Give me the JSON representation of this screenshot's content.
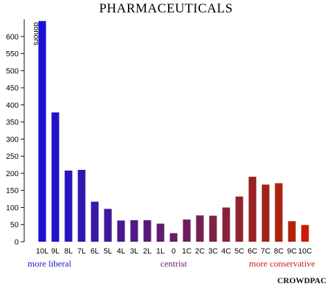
{
  "chart_data": {
    "type": "bar",
    "title": "PHARMACEUTICALS",
    "xlabel": "",
    "ylabel": "donors",
    "ylim": [
      0,
      650
    ],
    "yticks": [
      0,
      50,
      100,
      150,
      200,
      250,
      300,
      350,
      400,
      450,
      500,
      550,
      600
    ],
    "categories": [
      "10L",
      "9L",
      "8L",
      "7L",
      "6L",
      "5L",
      "4L",
      "3L",
      "2L",
      "1L",
      "0",
      "1C",
      "2C",
      "3C",
      "4C",
      "5C",
      "6C",
      "7C",
      "8C",
      "9C",
      "10C"
    ],
    "values": [
      645,
      378,
      208,
      210,
      117,
      96,
      62,
      63,
      63,
      53,
      25,
      65,
      77,
      76,
      100,
      132,
      190,
      167,
      171,
      60,
      49
    ],
    "colors": [
      "#1a12d4",
      "#2113c8",
      "#2915bd",
      "#3116b2",
      "#3917a7",
      "#41189c",
      "#491991",
      "#511a86",
      "#591b7b",
      "#611c70",
      "#691d66",
      "#711d5b",
      "#791e50",
      "#811f45",
      "#89203a",
      "#91212f",
      "#992224",
      "#a12219",
      "#a92310",
      "#b42208",
      "#cc1a0a"
    ],
    "annotations": [
      {
        "text": "more liberal",
        "color": "#1a12d4"
      },
      {
        "text": "centrist",
        "color": "#6b1c6a"
      },
      {
        "text": "more conservative",
        "color": "#cc1a1a"
      }
    ],
    "grid": false,
    "legend": "none"
  },
  "brand": "CROWDPAC"
}
